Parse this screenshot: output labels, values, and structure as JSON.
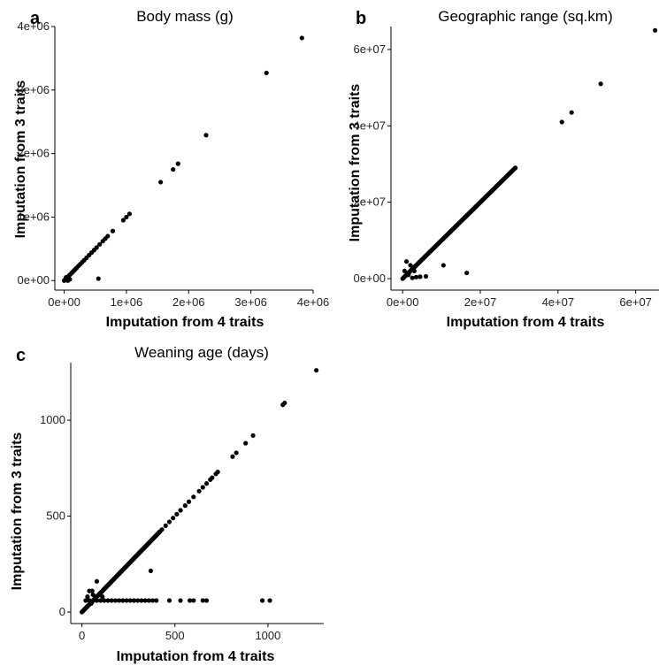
{
  "chart_data": [
    {
      "id": "a",
      "type": "scatter",
      "panel_label": "a",
      "title": "Body mass (g)",
      "xlabel": "Imputation from 4 traits",
      "ylabel": "Imputation from 3 traits",
      "xlim": [
        -150000,
        4000000
      ],
      "ylim": [
        -150000,
        4000000
      ],
      "xticks": [
        0,
        1000000,
        2000000,
        3000000,
        4000000
      ],
      "xtick_labels": [
        "0e+00",
        "1e+06",
        "2e+06",
        "3e+06",
        "4e+06"
      ],
      "yticks": [
        0,
        1000000,
        2000000,
        3000000,
        4000000
      ],
      "ytick_labels": [
        "0e+00",
        "1e+06",
        "2e+06",
        "3e+06",
        "4e+06"
      ],
      "grid": false,
      "points": [
        [
          0,
          0
        ],
        [
          15000,
          15000
        ],
        [
          30000,
          30000
        ],
        [
          45000,
          45000
        ],
        [
          60000,
          60000
        ],
        [
          80000,
          80000
        ],
        [
          100000,
          100000
        ],
        [
          120000,
          120000
        ],
        [
          140000,
          140000
        ],
        [
          160000,
          160000
        ],
        [
          180000,
          180000
        ],
        [
          200000,
          200000
        ],
        [
          230000,
          230000
        ],
        [
          260000,
          260000
        ],
        [
          290000,
          290000
        ],
        [
          320000,
          320000
        ],
        [
          360000,
          360000
        ],
        [
          400000,
          400000
        ],
        [
          440000,
          440000
        ],
        [
          480000,
          480000
        ],
        [
          520000,
          520000
        ],
        [
          570000,
          570000
        ],
        [
          620000,
          620000
        ],
        [
          660000,
          660000
        ],
        [
          700000,
          700000
        ],
        [
          780000,
          780000
        ],
        [
          950000,
          950000
        ],
        [
          1000000,
          1000000
        ],
        [
          1050000,
          1050000
        ],
        [
          1550000,
          1550000
        ],
        [
          1750000,
          1750000
        ],
        [
          1830000,
          1840000
        ],
        [
          2280000,
          2290000
        ],
        [
          3250000,
          3270000
        ],
        [
          3820000,
          3820000
        ],
        [
          550000,
          30000
        ],
        [
          60000,
          0
        ],
        [
          30000,
          50000
        ],
        [
          90000,
          20000
        ]
      ]
    },
    {
      "id": "b",
      "type": "scatter",
      "panel_label": "b",
      "title": "Geographic range (sq.km)",
      "xlabel": "Imputation from 4 traits",
      "ylabel": "Imputation from 3 traits",
      "xlim": [
        -3000000,
        66000000
      ],
      "ylim": [
        -3000000,
        66000000
      ],
      "xticks": [
        0,
        20000000,
        40000000,
        60000000
      ],
      "xtick_labels": [
        "0e+00",
        "2e+07",
        "4e+07",
        "6e+07"
      ],
      "yticks": [
        0,
        20000000,
        40000000,
        60000000
      ],
      "ytick_labels": [
        "0e+00",
        "2e+07",
        "4e+07",
        "6e+07"
      ],
      "grid": false,
      "line_range": [
        0,
        29000000
      ],
      "points": [
        [
          29000000,
          29000000
        ],
        [
          27500000,
          27500000
        ],
        [
          41000000,
          41000000
        ],
        [
          43500000,
          43500000
        ],
        [
          51000000,
          51000000
        ],
        [
          65000000,
          65000000
        ],
        [
          1000000,
          4500000
        ],
        [
          2000000,
          3500000
        ],
        [
          3000000,
          2000000
        ],
        [
          500000,
          2000000
        ],
        [
          1500000,
          1000000
        ],
        [
          4500000,
          500000
        ],
        [
          6000000,
          600000
        ],
        [
          10500000,
          3500000
        ],
        [
          16500000,
          1500000
        ],
        [
          2500000,
          200000
        ],
        [
          3500000,
          400000
        ]
      ]
    },
    {
      "id": "c",
      "type": "scatter",
      "panel_label": "c",
      "title": "Weaning age (days)",
      "xlabel": "Imputation from 4 traits",
      "ylabel": "Imputation from 3 traits",
      "xlim": [
        -60,
        1300
      ],
      "ylim": [
        -60,
        1300
      ],
      "xticks": [
        0,
        500,
        1000
      ],
      "xtick_labels": [
        "0",
        "500",
        "1000"
      ],
      "yticks": [
        0,
        500,
        1000
      ],
      "ytick_labels": [
        "0",
        "500",
        "1000"
      ],
      "grid": false,
      "line_range": [
        0,
        420
      ],
      "points": [
        [
          430,
          430
        ],
        [
          450,
          450
        ],
        [
          470,
          470
        ],
        [
          490,
          490
        ],
        [
          510,
          510
        ],
        [
          530,
          530
        ],
        [
          555,
          555
        ],
        [
          575,
          575
        ],
        [
          600,
          600
        ],
        [
          630,
          630
        ],
        [
          650,
          650
        ],
        [
          670,
          670
        ],
        [
          690,
          690
        ],
        [
          700,
          700
        ],
        [
          720,
          720
        ],
        [
          730,
          730
        ],
        [
          810,
          810
        ],
        [
          830,
          830
        ],
        [
          880,
          880
        ],
        [
          920,
          920
        ],
        [
          1080,
          1080
        ],
        [
          1090,
          1090
        ],
        [
          1260,
          1260
        ],
        [
          280,
          280
        ],
        [
          370,
          215
        ],
        [
          40,
          110
        ],
        [
          55,
          110
        ],
        [
          80,
          160
        ],
        [
          60,
          60
        ],
        [
          80,
          60
        ],
        [
          100,
          60
        ],
        [
          120,
          60
        ],
        [
          140,
          60
        ],
        [
          160,
          60
        ],
        [
          180,
          60
        ],
        [
          200,
          60
        ],
        [
          220,
          60
        ],
        [
          240,
          60
        ],
        [
          260,
          60
        ],
        [
          280,
          60
        ],
        [
          300,
          60
        ],
        [
          320,
          60
        ],
        [
          340,
          60
        ],
        [
          360,
          60
        ],
        [
          380,
          60
        ],
        [
          400,
          60
        ],
        [
          470,
          60
        ],
        [
          530,
          60
        ],
        [
          580,
          60
        ],
        [
          600,
          60
        ],
        [
          650,
          60
        ],
        [
          670,
          60
        ],
        [
          970,
          60
        ],
        [
          1010,
          60
        ],
        [
          40,
          60
        ],
        [
          20,
          60
        ],
        [
          30,
          80
        ],
        [
          50,
          45
        ],
        [
          110,
          80
        ],
        [
          60,
          90
        ]
      ]
    }
  ]
}
